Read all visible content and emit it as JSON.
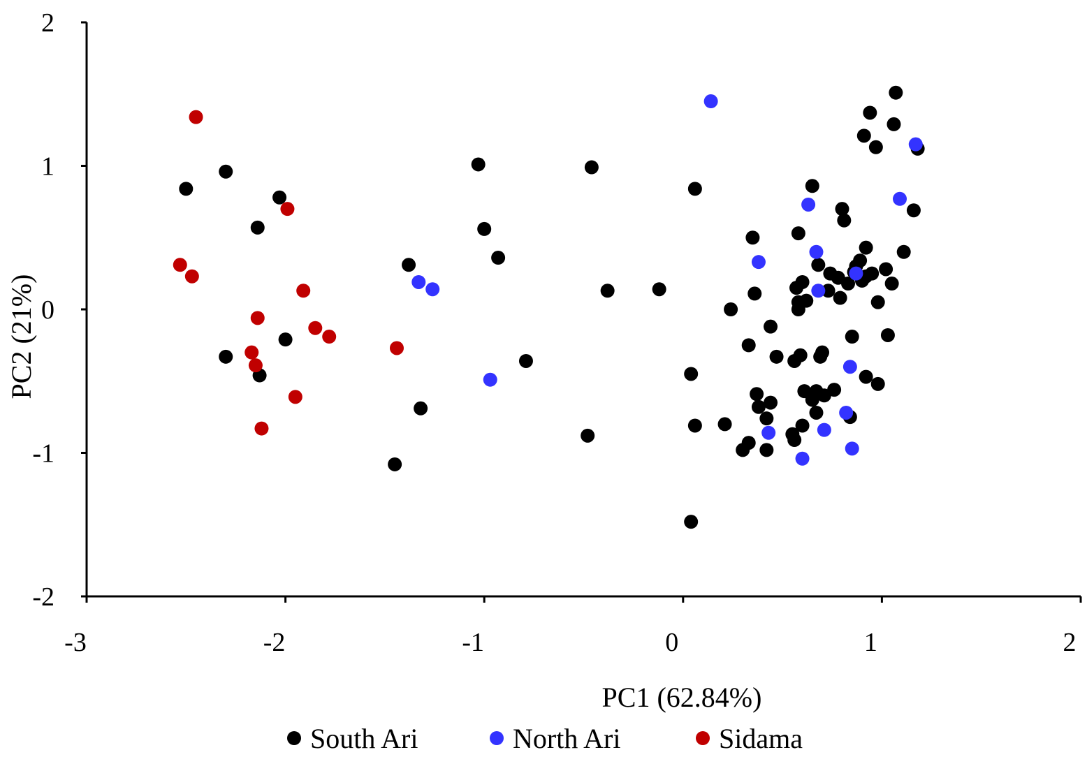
{
  "chart_data": {
    "type": "scatter",
    "title": "",
    "xlabel": "PC1 (62.84%)",
    "ylabel": "PC2 (21%)",
    "xlim": [
      -3,
      2
    ],
    "ylim": [
      -2,
      2
    ],
    "xticks": [
      "-3",
      "-2",
      "-1",
      "0",
      "1",
      "2"
    ],
    "yticks": [
      "2",
      "1",
      "0",
      "-1",
      "-2"
    ],
    "grid": false,
    "legend_position": "bottom",
    "series": [
      {
        "name": "South Ari",
        "color": "#000000",
        "points": [
          [
            -2.5,
            0.84
          ],
          [
            -2.3,
            0.96
          ],
          [
            -2.03,
            0.78
          ],
          [
            -2.14,
            0.57
          ],
          [
            -2.3,
            -0.33
          ],
          [
            -2.13,
            -0.46
          ],
          [
            -2.0,
            -0.21
          ],
          [
            -1.38,
            0.31
          ],
          [
            -1.32,
            -0.69
          ],
          [
            -1.45,
            -1.08
          ],
          [
            -1.03,
            1.01
          ],
          [
            -1.0,
            0.56
          ],
          [
            -0.93,
            0.36
          ],
          [
            -0.79,
            -0.36
          ],
          [
            -0.48,
            -0.88
          ],
          [
            -0.46,
            0.99
          ],
          [
            -0.38,
            0.13
          ],
          [
            -0.12,
            0.14
          ],
          [
            0.04,
            -0.45
          ],
          [
            0.06,
            0.84
          ],
          [
            0.06,
            -0.81
          ],
          [
            0.04,
            -1.48
          ],
          [
            0.21,
            -0.8
          ],
          [
            0.24,
            0.0
          ],
          [
            0.3,
            -0.98
          ],
          [
            0.33,
            -0.93
          ],
          [
            0.33,
            -0.25
          ],
          [
            0.35,
            0.5
          ],
          [
            0.36,
            0.11
          ],
          [
            0.37,
            -0.59
          ],
          [
            0.38,
            -0.68
          ],
          [
            0.42,
            -0.76
          ],
          [
            0.42,
            -0.98
          ],
          [
            0.44,
            -0.65
          ],
          [
            0.44,
            -0.12
          ],
          [
            0.47,
            -0.33
          ],
          [
            0.55,
            -0.87
          ],
          [
            0.56,
            -0.91
          ],
          [
            0.56,
            -0.36
          ],
          [
            0.57,
            0.15
          ],
          [
            0.58,
            0.53
          ],
          [
            0.58,
            0.05
          ],
          [
            0.58,
            0.0
          ],
          [
            0.59,
            -0.32
          ],
          [
            0.6,
            0.19
          ],
          [
            0.6,
            -0.81
          ],
          [
            0.61,
            -0.57
          ],
          [
            0.62,
            0.06
          ],
          [
            0.65,
            0.86
          ],
          [
            0.65,
            -0.63
          ],
          [
            0.67,
            -0.72
          ],
          [
            0.67,
            -0.57
          ],
          [
            0.68,
            0.31
          ],
          [
            0.69,
            -0.33
          ],
          [
            0.7,
            -0.3
          ],
          [
            0.71,
            -0.6
          ],
          [
            0.73,
            0.13
          ],
          [
            0.74,
            0.25
          ],
          [
            0.76,
            -0.56
          ],
          [
            0.78,
            0.22
          ],
          [
            0.79,
            0.08
          ],
          [
            0.8,
            0.7
          ],
          [
            0.81,
            0.62
          ],
          [
            0.83,
            0.18
          ],
          [
            0.84,
            -0.75
          ],
          [
            0.85,
            -0.19
          ],
          [
            0.86,
            0.26
          ],
          [
            0.87,
            0.3
          ],
          [
            0.89,
            0.34
          ],
          [
            0.9,
            0.2
          ],
          [
            0.91,
            1.21
          ],
          [
            0.92,
            0.43
          ],
          [
            0.92,
            0.23
          ],
          [
            0.92,
            -0.47
          ],
          [
            0.94,
            1.37
          ],
          [
            0.95,
            0.25
          ],
          [
            0.97,
            1.13
          ],
          [
            0.98,
            0.05
          ],
          [
            0.98,
            -0.52
          ],
          [
            1.02,
            0.28
          ],
          [
            1.03,
            -0.18
          ],
          [
            1.05,
            0.18
          ],
          [
            1.06,
            1.29
          ],
          [
            1.07,
            1.51
          ],
          [
            1.11,
            0.4
          ],
          [
            1.16,
            0.69
          ],
          [
            1.18,
            1.12
          ]
        ]
      },
      {
        "name": "North Ari",
        "color": "#3333ff",
        "points": [
          [
            0.14,
            1.45
          ],
          [
            -1.33,
            0.19
          ],
          [
            -1.26,
            0.14
          ],
          [
            -0.97,
            -0.49
          ],
          [
            0.38,
            0.33
          ],
          [
            0.43,
            -0.86
          ],
          [
            0.6,
            -1.04
          ],
          [
            0.63,
            0.73
          ],
          [
            0.67,
            0.4
          ],
          [
            0.68,
            0.13
          ],
          [
            0.71,
            -0.84
          ],
          [
            0.82,
            -0.72
          ],
          [
            0.84,
            -0.4
          ],
          [
            0.85,
            -0.97
          ],
          [
            0.87,
            0.25
          ],
          [
            1.09,
            0.77
          ],
          [
            1.17,
            1.15
          ]
        ]
      },
      {
        "name": "Sidama",
        "color": "#c00000",
        "points": [
          [
            -2.45,
            1.34
          ],
          [
            -2.53,
            0.31
          ],
          [
            -2.47,
            0.23
          ],
          [
            -1.99,
            0.7
          ],
          [
            -1.91,
            0.13
          ],
          [
            -2.14,
            -0.06
          ],
          [
            -1.85,
            -0.13
          ],
          [
            -1.78,
            -0.19
          ],
          [
            -2.17,
            -0.3
          ],
          [
            -2.15,
            -0.39
          ],
          [
            -1.95,
            -0.61
          ],
          [
            -2.12,
            -0.83
          ],
          [
            -1.44,
            -0.27
          ]
        ]
      }
    ]
  }
}
